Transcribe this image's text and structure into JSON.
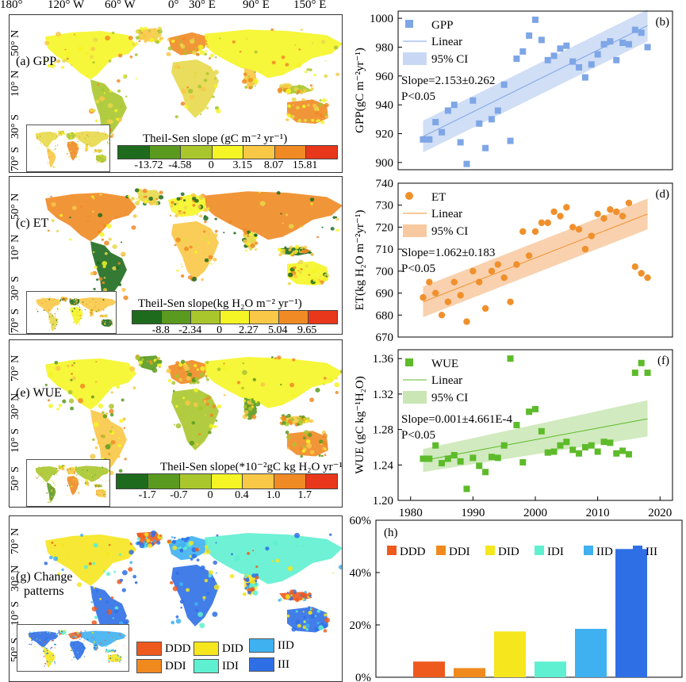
{
  "longitude_labels": [
    "180°",
    "120° W",
    "60° W",
    "0°",
    "30° E",
    "90° E",
    "150° E"
  ],
  "maps": [
    {
      "id": "a",
      "tag": "(a) GPP",
      "lat_labels": [
        "50° N",
        "10° N",
        "30° S",
        "70° S"
      ],
      "legend_title": "Theil-Sen slope (gC m⁻² yr⁻¹)",
      "legend_ticks": [
        "-13.72",
        "-4.58",
        "0",
        "3.15",
        "8.07",
        "15.81"
      ],
      "legend_colors": [
        "#1e6b1e",
        "#5a9a1e",
        "#a9c62c",
        "#f5f526",
        "#f9c846",
        "#f08a24",
        "#e8371b"
      ]
    },
    {
      "id": "c",
      "tag": "(c) ET",
      "lat_labels": [
        "50° N",
        "10° N",
        "30° S",
        "70° S"
      ],
      "legend_title": "Theil-Sen slope(kg H₂O m⁻² yr⁻¹)",
      "legend_ticks": [
        "-8.8",
        "-2.34",
        "0",
        "2.27",
        "5.04",
        "9.65"
      ],
      "legend_colors": [
        "#1e6b1e",
        "#5a9a1e",
        "#a9c62c",
        "#f5f526",
        "#f9c846",
        "#f08a24",
        "#e8371b"
      ]
    },
    {
      "id": "e",
      "tag": "(e) WUE",
      "lat_labels": [
        "70° N",
        "30° N",
        "10° S",
        "50° S"
      ],
      "legend_title": "Theil-Sen slope(*10⁻²gC kg H₂O yr⁻¹)",
      "legend_ticks": [
        "-1.7",
        "-0.7",
        "0",
        "0.4",
        "1.0",
        "1.7"
      ],
      "legend_colors": [
        "#1e6b1e",
        "#5a9a1e",
        "#a9c62c",
        "#f5f526",
        "#f9c846",
        "#f08a24",
        "#e8371b"
      ]
    },
    {
      "id": "g",
      "tag": "(g) Change patterns",
      "tag_line1": "(g) Change",
      "tag_line2": "patterns",
      "lat_labels": [
        "70° N",
        "30° N",
        "10° S",
        "50° S"
      ]
    }
  ],
  "change_pattern_legend": [
    {
      "label": "DDD",
      "color": "#ee5a1e"
    },
    {
      "label": "DID",
      "color": "#f5e61e"
    },
    {
      "label": "IID",
      "color": "#3fb0f0"
    },
    {
      "label": "DDI",
      "color": "#f08a1e"
    },
    {
      "label": "IDI",
      "color": "#5ef0d0"
    },
    {
      "label": "III",
      "color": "#2f6fe6"
    }
  ],
  "chart_data": [
    {
      "id": "b",
      "type": "scatter",
      "tag": "(b)",
      "ylabel": "GPP(gC m⁻²yr⁻¹)",
      "ylim": [
        895,
        1005
      ],
      "yticks": [
        900,
        920,
        940,
        960,
        980,
        1000
      ],
      "xlim": [
        1978,
        2022
      ],
      "marker": "square",
      "color": "#7ea6e6",
      "ci_color": "#c8d8f4",
      "legend": [
        "GPP",
        "Linear",
        "95% CI"
      ],
      "annotation": [
        "Slope=2.153±0.262",
        "P<0.05"
      ],
      "fit": {
        "x": [
          1982,
          2018
        ],
        "y": [
          918,
          995
        ]
      },
      "ci": {
        "x": [
          1982,
          2018
        ],
        "lower": [
          907,
          984
        ],
        "upper": [
          929,
          1006
        ]
      },
      "x": [
        1982,
        1983,
        1984,
        1985,
        1986,
        1987,
        1988,
        1989,
        1990,
        1991,
        1992,
        1993,
        1994,
        1995,
        1996,
        1997,
        1998,
        1999,
        2000,
        2001,
        2002,
        2003,
        2004,
        2005,
        2006,
        2007,
        2008,
        2009,
        2010,
        2011,
        2012,
        2013,
        2014,
        2015,
        2016,
        2017,
        2018
      ],
      "y": [
        916,
        916,
        928,
        921,
        936,
        940,
        914,
        899,
        943,
        927,
        910,
        930,
        936,
        954,
        915,
        972,
        977,
        988,
        999,
        985,
        971,
        974,
        979,
        981,
        970,
        966,
        959,
        968,
        975,
        982,
        984,
        971,
        983,
        982,
        992,
        990,
        980
      ]
    },
    {
      "id": "d",
      "type": "scatter",
      "tag": "(d)",
      "ylabel": "ET(kg H₂O m⁻²yr⁻¹)",
      "ylim": [
        670,
        740
      ],
      "yticks": [
        670,
        680,
        690,
        700,
        710,
        720,
        730,
        740
      ],
      "xlim": [
        1978,
        2022
      ],
      "marker": "circle",
      "color": "#f0902c",
      "ci_color": "#f8c9a0",
      "legend": [
        "ET",
        "Linear",
        "95% CI"
      ],
      "annotation": [
        "Slope=1.062±0.183",
        "P<0.05"
      ],
      "fit": {
        "x": [
          1982,
          2018
        ],
        "y": [
          686,
          726
        ]
      },
      "ci": {
        "x": [
          1982,
          2018
        ],
        "lower": [
          679,
          719
        ],
        "upper": [
          693,
          733
        ]
      },
      "x": [
        1982,
        1983,
        1984,
        1985,
        1986,
        1987,
        1988,
        1989,
        1990,
        1991,
        1992,
        1993,
        1994,
        1995,
        1996,
        1997,
        1998,
        1999,
        2000,
        2001,
        2002,
        2003,
        2004,
        2005,
        2006,
        2007,
        2008,
        2009,
        2010,
        2011,
        2012,
        2013,
        2014,
        2015,
        2016,
        2017,
        2018
      ],
      "y": [
        688,
        695,
        690,
        680,
        686,
        695,
        689,
        677,
        700,
        695,
        683,
        700,
        703,
        697,
        686,
        703,
        718,
        707,
        718,
        722,
        722,
        727,
        725,
        729,
        720,
        719,
        710,
        716,
        726,
        724,
        728,
        727,
        725,
        731,
        702,
        699,
        697
      ]
    },
    {
      "id": "f",
      "type": "scatter",
      "tag": "(f)",
      "ylabel": "WUE (gC kg⁻¹H₂O)",
      "ylim": [
        1.2,
        1.37
      ],
      "yticks": [
        1.2,
        1.24,
        1.28,
        1.32,
        1.36
      ],
      "ytick_labels": [
        "1.20",
        "1.24",
        "1.28",
        "1.32",
        "1.36"
      ],
      "xlim": [
        1978,
        2022
      ],
      "xticks": [
        1980,
        1990,
        2000,
        2010,
        2020
      ],
      "marker": "square",
      "color": "#5dbb2a",
      "ci_color": "#c9e6b4",
      "legend": [
        "WUE",
        "Linear",
        "95% CI"
      ],
      "annotation": [
        "Slope=0.001±4.661E-4",
        "P<0.05"
      ],
      "fit": {
        "x": [
          1982,
          2018
        ],
        "y": [
          1.245,
          1.292
        ]
      },
      "ci": {
        "x": [
          1982,
          2018
        ],
        "lower": [
          1.232,
          1.272
        ],
        "upper": [
          1.258,
          1.313
        ]
      },
      "x": [
        1982,
        1983,
        1984,
        1985,
        1986,
        1987,
        1988,
        1989,
        1990,
        1991,
        1992,
        1993,
        1994,
        1995,
        1996,
        1997,
        1998,
        1999,
        2000,
        2001,
        2002,
        2003,
        2004,
        2005,
        2006,
        2007,
        2008,
        2009,
        2010,
        2011,
        2012,
        2013,
        2014,
        2015,
        2016,
        2017,
        2018
      ],
      "y": [
        1.247,
        1.247,
        1.262,
        1.242,
        1.247,
        1.251,
        1.244,
        1.213,
        1.248,
        1.239,
        1.232,
        1.249,
        1.248,
        1.262,
        1.36,
        1.285,
        1.243,
        1.3,
        1.303,
        1.278,
        1.254,
        1.255,
        1.262,
        1.266,
        1.257,
        1.253,
        1.26,
        1.262,
        1.255,
        1.266,
        1.265,
        1.253,
        1.256,
        1.252,
        1.344,
        1.355,
        1.344
      ]
    },
    {
      "id": "h",
      "type": "bar",
      "tag": "(h)",
      "categories": [
        "DDD",
        "DDI",
        "DID",
        "IDI",
        "IID",
        "III"
      ],
      "values": [
        6,
        3.5,
        17.5,
        6,
        18.5,
        49
      ],
      "colors": [
        "#ee5a1e",
        "#f08a1e",
        "#f5e61e",
        "#5ef0d0",
        "#3fb0f0",
        "#2f6fe6"
      ],
      "ylim": [
        0,
        60
      ],
      "yticks": [
        0,
        20,
        40,
        60
      ],
      "ytick_labels": [
        "0%",
        "20%",
        "40%",
        "60%"
      ]
    }
  ]
}
